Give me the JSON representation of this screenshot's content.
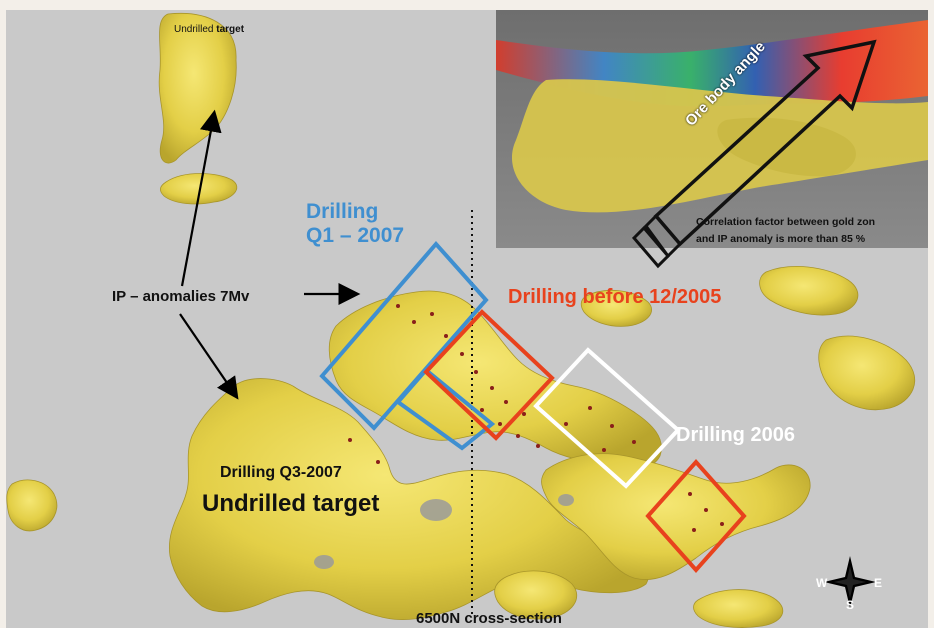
{
  "labels": {
    "undrilled_target_top_pre": "Undrilled",
    "undrilled_target_top_post": "target",
    "ip_anomalies": "IP – anomalies 7Mv",
    "drilling_q1_line1": "Drilling",
    "drilling_q1_line2": "Q1 – 2007",
    "drilling_before": "Drilling before 12/2005",
    "drilling_2006": "Drilling 2006",
    "drilling_q3": "Drilling Q3-2007",
    "undrilled_target_big": "Undrilled target",
    "cross_section": "6500N cross-section"
  },
  "inset": {
    "ore_body_angle": "Ore body angle",
    "correlation_line1": "Correlation factor between gold zon",
    "correlation_line2": "and IP anomaly is more than 85 %"
  },
  "compass": {
    "w": "W",
    "e": "E",
    "s": "S"
  },
  "colors": {
    "background": "#c9c9c9",
    "orebody_yellow": "#e9d64f",
    "q1_blue": "#3f8fd0",
    "before_red": "#e8421d",
    "y2006_white": "#ffffff"
  }
}
